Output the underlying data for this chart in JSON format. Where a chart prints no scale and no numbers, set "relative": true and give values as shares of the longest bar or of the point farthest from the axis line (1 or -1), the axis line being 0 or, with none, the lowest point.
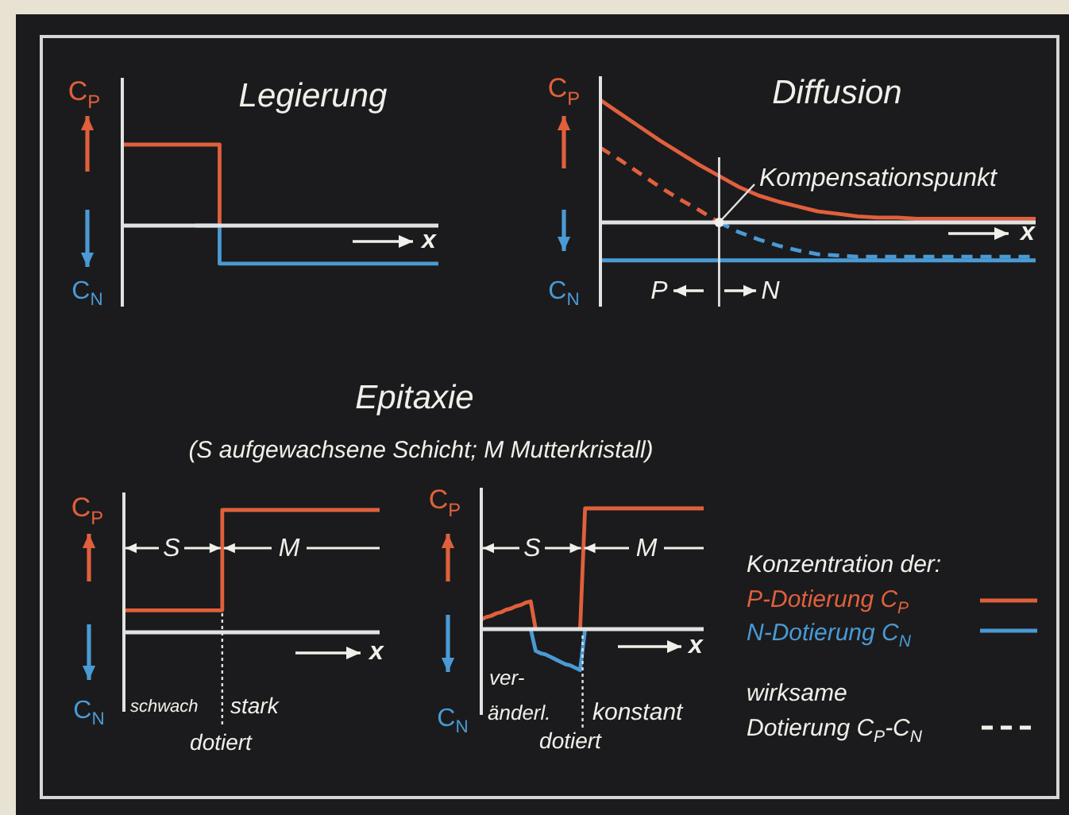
{
  "chart_data": [
    {
      "type": "step",
      "title": "Legierung",
      "xlabel": "x",
      "ylabel": "C$_{P}$",
      "annotations": [
        "C$_{N}$"
      ],
      "relative": true,
      "categories": [
        null,
        null,
        null,
        null,
        null,
        null,
        null,
        null,
        null,
        null,
        null,
        null,
        null,
        null
      ],
      "series": [
        {
          "color": "#e0603c",
          "values": [
            1,
            1,
            1,
            1,
            0,
            null,
            null,
            null,
            null,
            null,
            null,
            null,
            null,
            null
          ]
        },
        {
          "color": "#4a9ad4",
          "values": [
            null,
            null,
            null,
            0,
            -0.47,
            -0.47,
            -0.47,
            -0.47,
            -0.47,
            -0.47,
            -0.47,
            -0.47,
            -0.47,
            -0.47
          ]
        }
      ]
    },
    {
      "type": "line",
      "title": "Diffusion",
      "xlabel": "x",
      "ylabel": "C$_{P}$",
      "annotations": [
        "C$_{N}$",
        {
          "text": "Kompensationspunkt",
          "y": 0
        },
        "P",
        "N"
      ],
      "relative": true,
      "categories": [
        null,
        null,
        null,
        null,
        null,
        null,
        null,
        null,
        null,
        null,
        null,
        null,
        null,
        null,
        null,
        null,
        null,
        null,
        null,
        null,
        null,
        null,
        null
      ],
      "series": [
        {
          "color": "#e0603c",
          "values": [
            1,
            0.89,
            0.78,
            0.67,
            0.57,
            0.47,
            0.38,
            0.29,
            0.22,
            0.17,
            0.13,
            0.09,
            0.07,
            0.05,
            0.04,
            0.04,
            0.03,
            0.03,
            0.03,
            0.03,
            0.03,
            0.03,
            0.03
          ]
        },
        {
          "color": "#4a9ad4",
          "values": [
            -0.31,
            -0.31,
            -0.31,
            -0.31,
            -0.31,
            -0.31,
            -0.31,
            -0.31,
            -0.31,
            -0.31,
            -0.31,
            -0.31,
            -0.31,
            -0.31,
            -0.31,
            -0.31,
            -0.31,
            -0.31,
            -0.31,
            -0.31,
            -0.31,
            -0.31,
            -0.31
          ]
        },
        {
          "color": "#e0603c",
          "line_style": "dashed",
          "values": [
            0.61,
            0.51,
            0.4,
            0.29,
            0.19,
            0.1,
            0,
            null,
            null,
            null,
            null,
            null,
            null,
            null,
            null,
            null,
            null,
            null,
            null,
            null,
            null,
            null,
            null
          ]
        },
        {
          "color": "#4a9ad4",
          "line_style": "dashed",
          "values": [
            null,
            null,
            null,
            null,
            null,
            null,
            0,
            -0.08,
            -0.14,
            -0.19,
            -0.23,
            -0.26,
            -0.27,
            -0.28,
            -0.28,
            -0.28,
            -0.28,
            -0.28,
            -0.28,
            -0.28,
            -0.28,
            -0.28,
            -0.28
          ]
        }
      ]
    },
    {
      "type": "step",
      "title": "Epitaxie",
      "subtitle": "(S aufgewachsene Schicht; M Mutterkristall)",
      "xlabel": "x",
      "ylabel": "C$_{P}$",
      "annotations": [
        "C$_{N}$",
        "S",
        "M",
        "schwach",
        "stark",
        "dotiert"
      ],
      "relative": true,
      "categories": [
        null,
        null,
        null,
        null,
        null,
        null,
        null,
        null,
        null,
        null,
        null,
        null,
        null,
        null
      ],
      "series": [
        {
          "color": "#e0603c",
          "values": [
            0.18,
            0.18,
            0.18,
            0.18,
            0.18,
            1,
            1,
            1,
            1,
            1,
            1,
            1,
            1,
            1
          ]
        }
      ]
    },
    {
      "type": "line",
      "xlabel": "x",
      "ylabel": "C$_{P}$",
      "annotations": [
        "C$_{N}$",
        "S",
        "M",
        "ver-",
        "änderl.",
        "konstant",
        "dotiert"
      ],
      "relative": true,
      "categories": [
        null,
        null,
        null,
        null,
        null,
        null,
        null,
        null,
        null,
        null,
        null,
        null,
        null,
        null,
        null,
        null,
        null,
        null,
        null,
        null,
        null,
        null,
        null,
        null,
        null,
        null,
        null,
        null,
        null,
        null,
        null,
        null,
        null,
        null,
        null,
        null,
        null,
        null,
        null,
        null,
        null,
        null,
        null,
        null,
        null,
        null
      ],
      "series": [
        {
          "color": "#e0603c",
          "values": [
            0.08,
            0.1,
            0.11,
            0.13,
            0.14,
            0.16,
            0.17,
            0.19,
            0.2,
            0.22,
            0.23,
            0,
            null,
            null,
            null,
            null,
            null,
            null,
            null,
            null,
            0,
            1,
            1,
            1,
            1,
            1,
            1,
            1,
            1,
            1,
            1,
            1,
            1,
            1,
            1,
            1,
            1,
            1,
            1,
            1,
            1,
            1,
            1,
            1,
            1,
            1
          ]
        },
        {
          "color": "#4a9ad4",
          "values": [
            null,
            null,
            null,
            null,
            null,
            null,
            null,
            null,
            null,
            null,
            0,
            -0.18,
            -0.2,
            -0.21,
            -0.23,
            -0.25,
            -0.27,
            -0.29,
            -0.3,
            -0.32,
            -0.34,
            0,
            null,
            null,
            null,
            null,
            null,
            null,
            null,
            null,
            null,
            null,
            null,
            null,
            null,
            null,
            null,
            null,
            null,
            null,
            null,
            null,
            null,
            null,
            null,
            null
          ]
        }
      ]
    },
    {
      "type": "other",
      "annotations": [
        "Konzentration der:",
        "P-Dotierung C$_{P}$",
        "N-Dotierung C$_{N}$",
        "wirksame",
        "Dotierung C$_{P}$-C$_{N}$"
      ]
    }
  ]
}
